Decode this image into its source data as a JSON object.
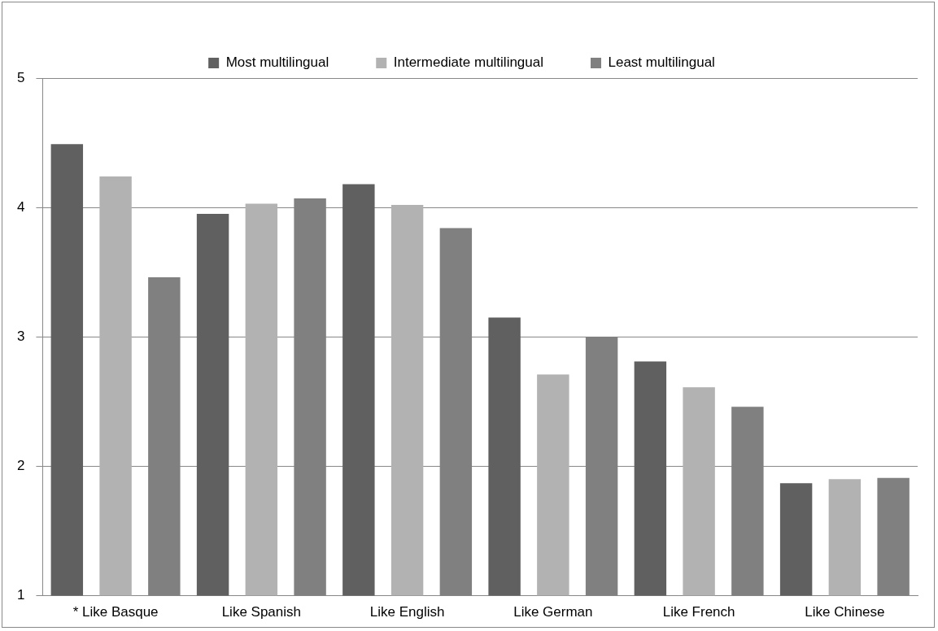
{
  "chart_data": {
    "type": "bar",
    "categories": [
      "* Like Basque",
      "Like Spanish",
      "Like English",
      "Like German",
      "Like French",
      "Like Chinese"
    ],
    "series": [
      {
        "name": "Most multilingual",
        "color": "#606060",
        "values": [
          4.49,
          3.95,
          4.18,
          3.15,
          2.81,
          1.87
        ]
      },
      {
        "name": "Intermediate multilingual",
        "color": "#b2b2b2",
        "values": [
          4.24,
          4.03,
          4.02,
          2.71,
          2.61,
          1.9
        ]
      },
      {
        "name": "Least multilingual",
        "color": "#808080",
        "values": [
          3.46,
          4.07,
          3.84,
          3.0,
          2.46,
          1.91
        ]
      }
    ],
    "ylim": [
      1,
      5
    ],
    "yticks": [
      1,
      2,
      3,
      4,
      5
    ],
    "grid": "y",
    "legend": "top"
  }
}
